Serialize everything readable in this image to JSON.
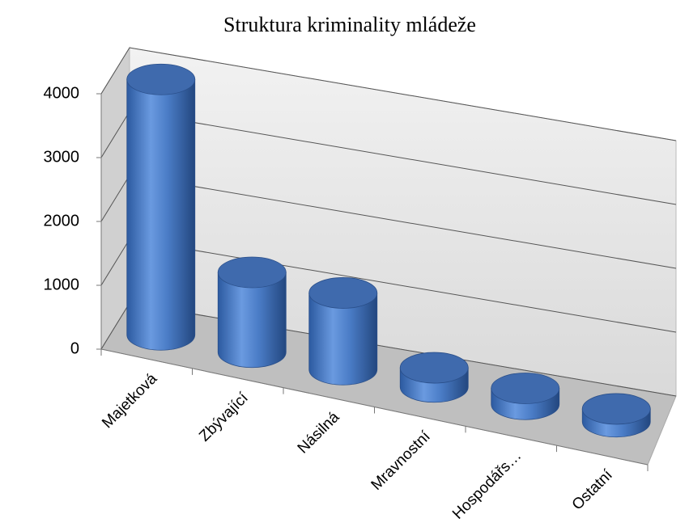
{
  "chart_data": {
    "type": "bar3d_cylinder",
    "title": "Struktura kriminality mládeže",
    "categories": [
      "Majetková",
      "Zbývající",
      "Násilná",
      "Mravnostní",
      "Hospodářs…",
      "Ostatní"
    ],
    "values": [
      4000,
      1250,
      1200,
      300,
      250,
      200
    ],
    "color": "#4a7cc6",
    "ylim": [
      0,
      4000
    ],
    "yticks": [
      0,
      1000,
      2000,
      3000,
      4000
    ],
    "grid": true
  }
}
